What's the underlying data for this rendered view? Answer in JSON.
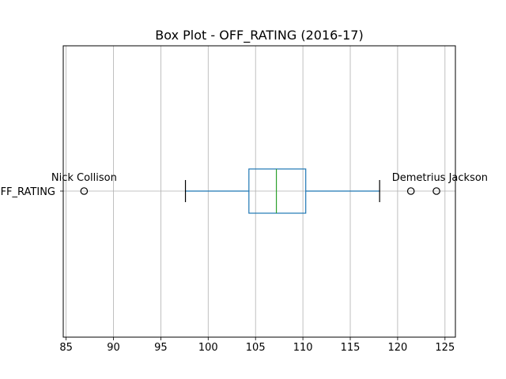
{
  "chart_data": {
    "type": "box",
    "title": "Box Plot - OFF_RATING (2016-17)",
    "xlabel": "",
    "ylabel": "",
    "category_label": "OFF_RATING",
    "xlim": [
      84.7,
      126.1
    ],
    "xticks": [
      85,
      90,
      95,
      100,
      105,
      110,
      115,
      120,
      125
    ],
    "grid": true,
    "stats": {
      "whisker_low": 97.6,
      "q1": 104.3,
      "median": 107.2,
      "q3": 110.3,
      "whisker_high": 118.1
    },
    "outliers": [
      {
        "value": 86.9,
        "label": "Nick Collison"
      },
      {
        "value": 121.4,
        "label": ""
      },
      {
        "value": 124.1,
        "label": "Demetrius Jackson"
      }
    ]
  },
  "colors": {
    "box": "#1f77b4",
    "median": "#2ca02c",
    "whisker_cap": "#000000",
    "grid": "#b0b0b0",
    "axes": "#000000"
  }
}
